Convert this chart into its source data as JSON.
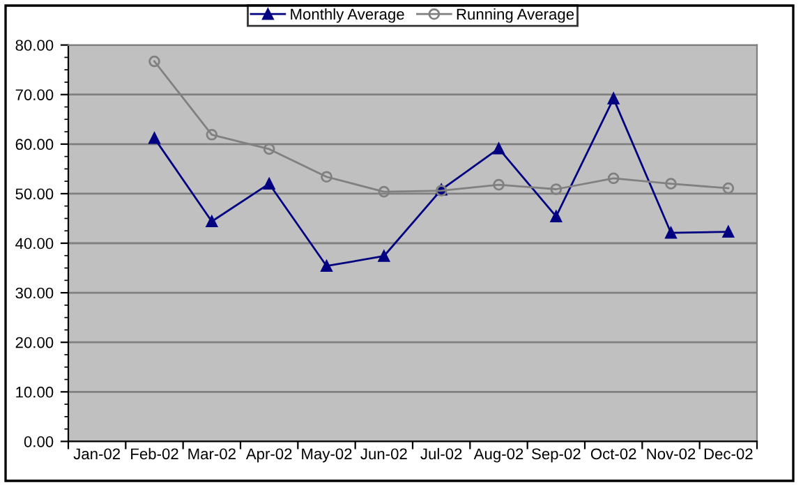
{
  "chart_data": {
    "type": "line",
    "categories": [
      "Jan-02",
      "Feb-02",
      "Mar-02",
      "Apr-02",
      "May-02",
      "Jun-02",
      "Jul-02",
      "Aug-02",
      "Sep-02",
      "Oct-02",
      "Nov-02",
      "Dec-02"
    ],
    "series": [
      {
        "name": "Monthly Average",
        "color": "#000080",
        "marker": "triangle",
        "values": [
          null,
          61.2,
          44.4,
          52.0,
          35.4,
          37.4,
          50.8,
          59.1,
          45.4,
          69.2,
          42.1,
          42.3
        ]
      },
      {
        "name": "Running Average",
        "color": "#808080",
        "marker": "circle",
        "values": [
          null,
          76.7,
          61.9,
          59.0,
          53.4,
          50.4,
          50.6,
          51.8,
          50.9,
          53.1,
          52.0,
          51.1
        ]
      }
    ],
    "ylim": [
      0,
      80
    ],
    "yticks": [
      {
        "value": 0,
        "label": "0.00"
      },
      {
        "value": 10,
        "label": "10.00"
      },
      {
        "value": 20,
        "label": "20.00"
      },
      {
        "value": 30,
        "label": "30.00"
      },
      {
        "value": 40,
        "label": "40.00"
      },
      {
        "value": 50,
        "label": "50.00"
      },
      {
        "value": 60,
        "label": "60.00"
      },
      {
        "value": 70,
        "label": "70.00"
      },
      {
        "value": 80,
        "label": "80.00"
      }
    ],
    "grid": "y",
    "legend": "top",
    "line_style": "solid"
  }
}
